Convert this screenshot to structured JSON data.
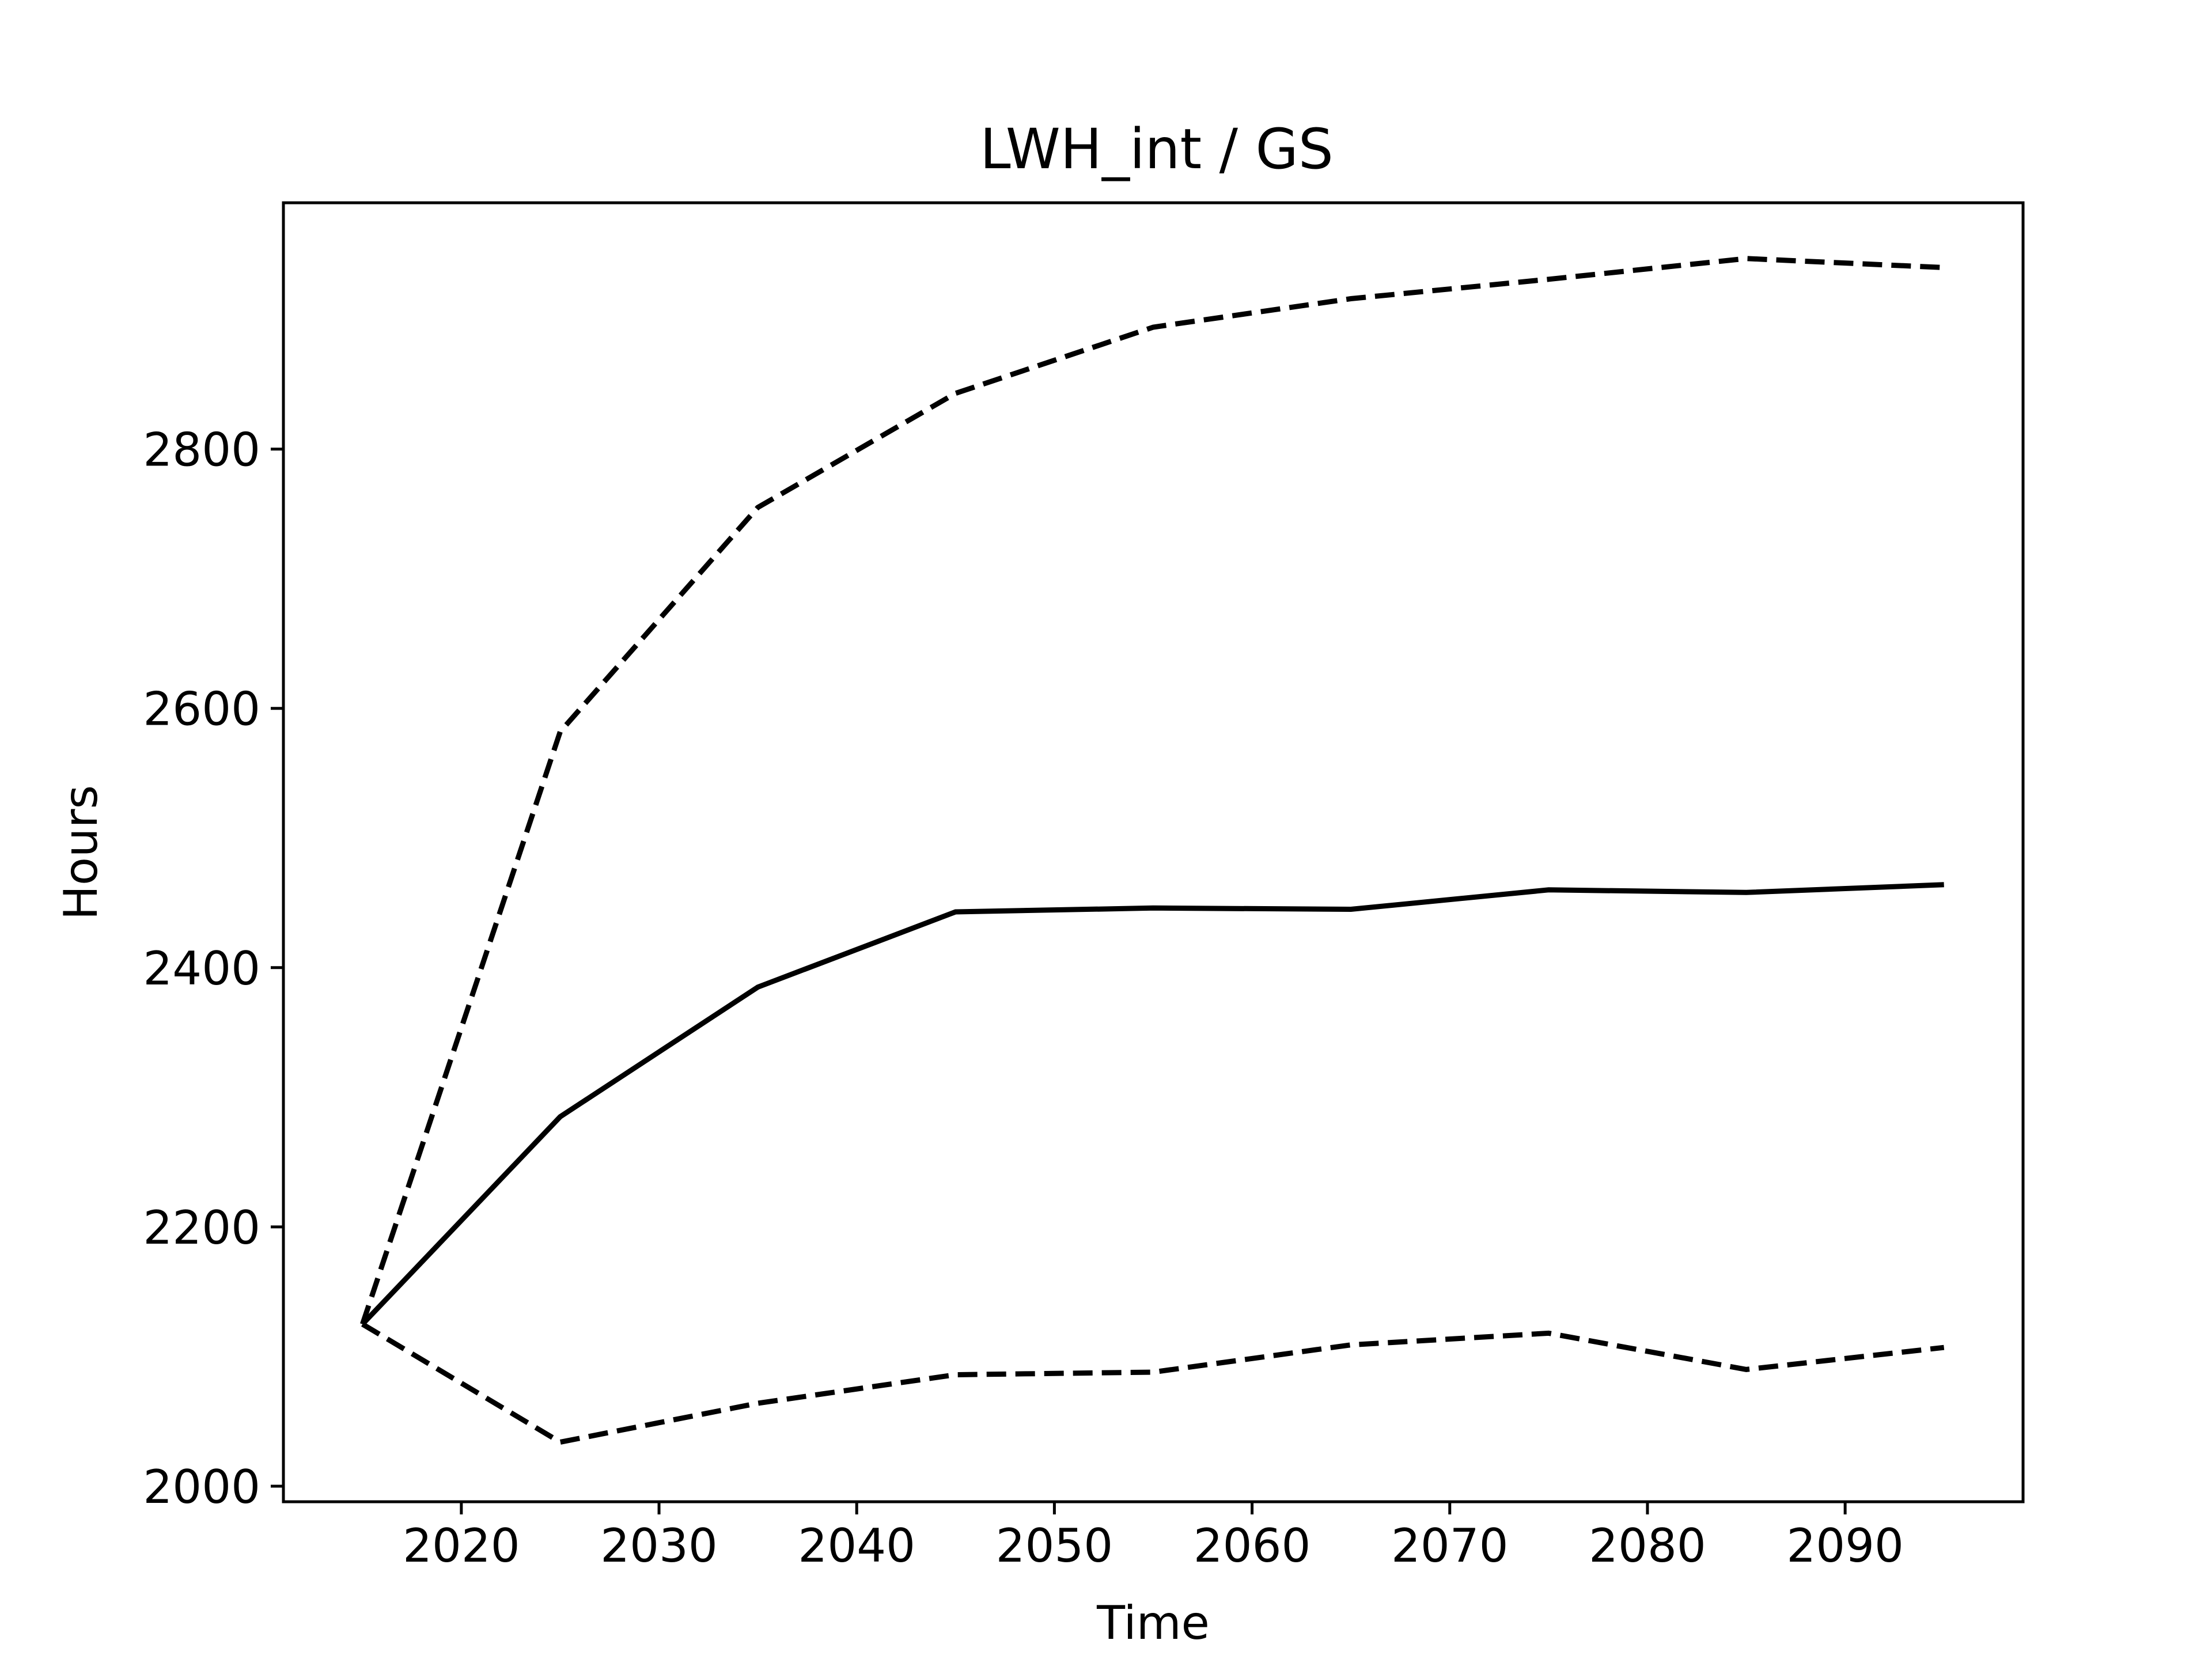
{
  "chart_data": {
    "type": "line",
    "title": "LWH_int / GS",
    "xlabel": "Time",
    "ylabel": "Hours",
    "xlim": [
      2011,
      2099
    ],
    "ylim": [
      1988,
      2990
    ],
    "x_ticks": [
      2020,
      2030,
      2040,
      2050,
      2060,
      2070,
      2080,
      2090
    ],
    "y_ticks": [
      2000,
      2200,
      2400,
      2600,
      2800
    ],
    "grid": false,
    "legend": "none",
    "x": [
      2015,
      2025,
      2035,
      2045,
      2055,
      2065,
      2075,
      2085,
      2095
    ],
    "series": [
      {
        "style": "solid",
        "color": "#000000",
        "values": [
          2125,
          2285,
          2385,
          2443,
          2446,
          2445,
          2460,
          2458,
          2464
        ]
      },
      {
        "style": "dashed",
        "color": "#000000",
        "values": [
          2125,
          2582,
          2755,
          2843,
          2894,
          2916,
          2931,
          2947,
          2940
        ]
      },
      {
        "style": "dashed",
        "color": "#000000",
        "values": [
          2125,
          2034,
          2064,
          2086,
          2088,
          2109,
          2118,
          2090,
          2107
        ]
      }
    ]
  }
}
